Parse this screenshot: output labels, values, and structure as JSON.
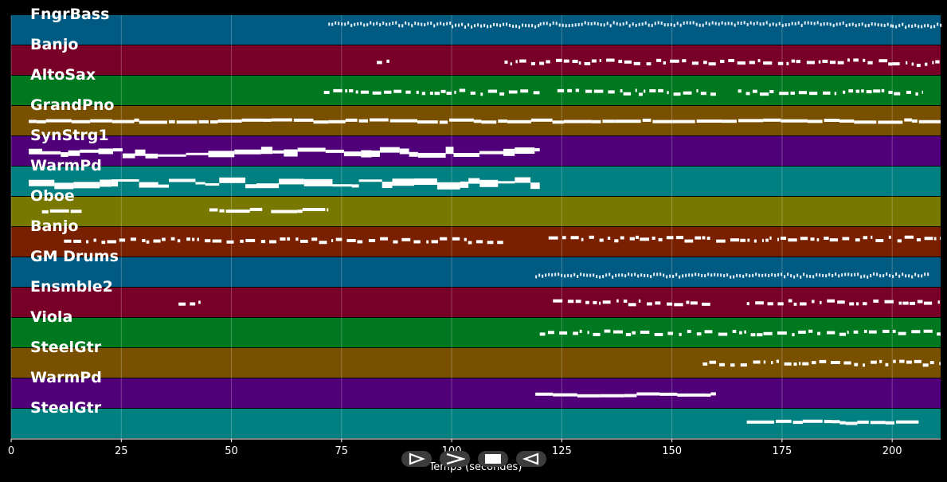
{
  "chart_data": {
    "type": "piano-roll",
    "xlabel": "Temps (secondes)",
    "xlim": [
      0,
      211
    ],
    "xticks": [
      0,
      25,
      50,
      75,
      100,
      125,
      150,
      175,
      200
    ],
    "grid": true,
    "tracks": [
      {
        "name": "FngrBass",
        "color": "#005a82",
        "notes": [
          [
            72,
            100,
            0.3
          ],
          [
            100,
            120,
            0.35
          ],
          [
            120,
            200,
            0.3
          ],
          [
            200,
            211,
            0.35
          ]
        ],
        "pattern": "dense"
      },
      {
        "name": "Banjo",
        "color": "#780028",
        "notes": [
          [
            83,
            86,
            0.5
          ],
          [
            112,
            200,
            0.55
          ],
          [
            200,
            211,
            0.6
          ]
        ],
        "pattern": "dots"
      },
      {
        "name": "AltoSax",
        "color": "#007820",
        "notes": [
          [
            71,
            120,
            0.55
          ],
          [
            124,
            160,
            0.55
          ],
          [
            165,
            207,
            0.55
          ]
        ],
        "pattern": "dots"
      },
      {
        "name": "GrandPno",
        "color": "#785000",
        "notes": [
          [
            4,
            211,
            0.5
          ]
        ],
        "pattern": "solid"
      },
      {
        "name": "SynStrg1",
        "color": "#500078",
        "notes": [
          [
            4,
            120,
            0.55
          ]
        ],
        "pattern": "thick"
      },
      {
        "name": "WarmPd",
        "color": "#008080",
        "notes": [
          [
            4,
            120,
            0.55
          ]
        ],
        "pattern": "thick"
      },
      {
        "name": "Oboe",
        "color": "#787800",
        "notes": [
          [
            7,
            16,
            0.5
          ],
          [
            45,
            57,
            0.45
          ],
          [
            59,
            72,
            0.45
          ]
        ],
        "pattern": "solid"
      },
      {
        "name": "Banjo",
        "color": "#782000",
        "notes": [
          [
            12,
            112,
            0.45
          ],
          [
            122,
            211,
            0.4
          ]
        ],
        "pattern": "dots"
      },
      {
        "name": "GM Drums",
        "color": "#005a82",
        "notes": [
          [
            119,
            208,
            0.6
          ]
        ],
        "pattern": "dense"
      },
      {
        "name": "Ensmble2",
        "color": "#780028",
        "notes": [
          [
            38,
            43,
            0.5
          ],
          [
            123,
            159,
            0.5
          ],
          [
            167,
            211,
            0.5
          ]
        ],
        "pattern": "dots"
      },
      {
        "name": "Viola",
        "color": "#007820",
        "notes": [
          [
            120,
            211,
            0.5
          ]
        ],
        "pattern": "dots"
      },
      {
        "name": "SteelGtr",
        "color": "#785000",
        "notes": [
          [
            157,
            211,
            0.5
          ]
        ],
        "pattern": "dots"
      },
      {
        "name": "WarmPd",
        "color": "#500078",
        "notes": [
          [
            119,
            160,
            0.55
          ]
        ],
        "pattern": "solid"
      },
      {
        "name": "SteelGtr",
        "color": "#008080",
        "notes": [
          [
            167,
            206,
            0.45
          ]
        ],
        "pattern": "solid"
      }
    ]
  },
  "controls": [
    {
      "name": "play-forward-button",
      "icon": "play-outline-icon"
    },
    {
      "name": "fast-forward-button",
      "icon": "chevron-right-icon"
    },
    {
      "name": "stop-button",
      "icon": "stop-icon"
    },
    {
      "name": "rewind-button",
      "icon": "play-reverse-icon"
    }
  ]
}
